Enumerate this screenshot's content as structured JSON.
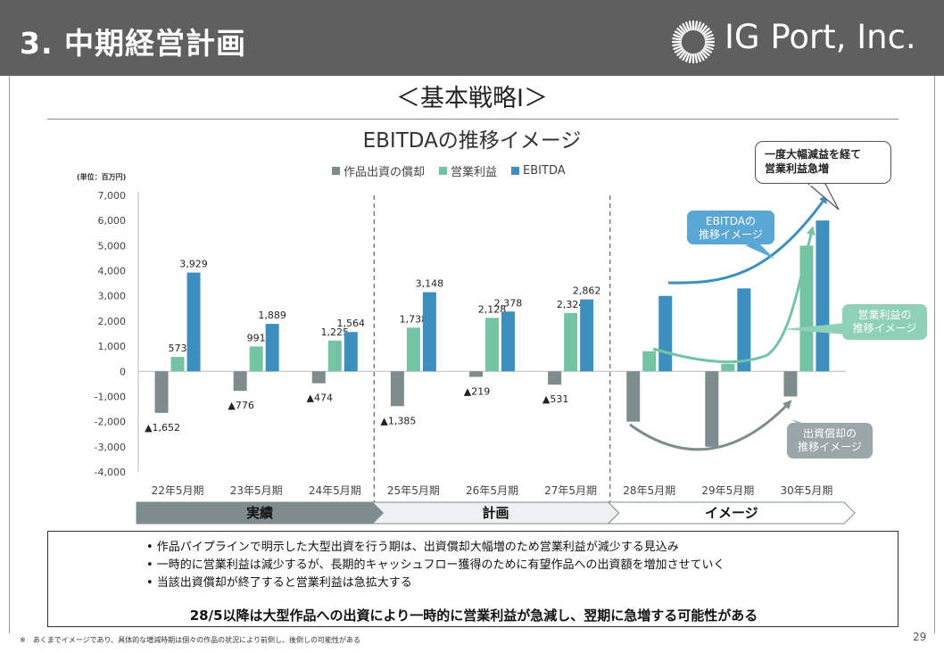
{
  "header": {
    "title": "3. 中期経営計画",
    "company": "IG Port, Inc."
  },
  "strategy_title": "＜基本戦略Ⅰ＞",
  "chart_title": "EBITDAの推移イメージ",
  "unit_label": "(単位：百万円)",
  "colors": {
    "amortization": "#7f8c8d",
    "operating_profit": "#74c3a4",
    "ebitda": "#3d8fc0",
    "header_bg": "#5f5f5f"
  },
  "chart_data": {
    "type": "bar",
    "title": "EBITDAの推移イメージ",
    "ylabel": "(単位：百万円)",
    "ylim": [
      -4000,
      7000
    ],
    "yticks": [
      "7,000",
      "6,000",
      "5,000",
      "4,000",
      "3,000",
      "2,000",
      "1,000",
      "0",
      "-1,000",
      "-2,000",
      "-3,000",
      "-4,000"
    ],
    "ytick_values": [
      7000,
      6000,
      5000,
      4000,
      3000,
      2000,
      1000,
      0,
      -1000,
      -2000,
      -3000,
      -4000
    ],
    "categories": [
      "22年5月期",
      "23年5月期",
      "24年5月期",
      "25年5月期",
      "26年5月期",
      "27年5月期",
      "28年5月期",
      "29年5月期",
      "30年5月期"
    ],
    "legend": [
      "作品出資の償却",
      "営業利益",
      "EBITDA"
    ],
    "series": [
      {
        "name": "作品出資の償却",
        "values": [
          -1652,
          -776,
          -474,
          -1385,
          -219,
          -531,
          -2000,
          -3000,
          -1000
        ],
        "labels": [
          "▲1,652",
          "▲776",
          "▲474",
          "▲1,385",
          "▲219",
          "▲531",
          null,
          null,
          null
        ]
      },
      {
        "name": "営業利益",
        "values": [
          573,
          991,
          1225,
          1738,
          2128,
          2324,
          800,
          300,
          5000
        ],
        "labels": [
          "573",
          "991",
          "1,225",
          "1,738",
          "2,128",
          "2,324",
          null,
          null,
          null
        ]
      },
      {
        "name": "EBITDA",
        "values": [
          3929,
          1889,
          1564,
          3148,
          2378,
          2862,
          3000,
          3300,
          6000
        ],
        "labels": [
          "3,929",
          "1,889",
          "1,564",
          "3,148",
          "2,378",
          "2,862",
          null,
          null,
          null
        ]
      }
    ],
    "phases": [
      {
        "label": "実績",
        "from": 0,
        "to": 2
      },
      {
        "label": "計画",
        "from": 3,
        "to": 5
      },
      {
        "label": "イメージ",
        "from": 6,
        "to": 8
      }
    ]
  },
  "callouts": {
    "top": [
      "一度大幅減益を経て",
      "営業利益急増"
    ],
    "ebitda": [
      "EBITDAの",
      "推移イメージ"
    ],
    "operating": [
      "営業利益の",
      "推移イメージ"
    ],
    "amortization": [
      "出資償却の",
      "推移イメージ"
    ]
  },
  "notes": {
    "bullets": [
      "• 作品パイプラインで明示した大型出資を行う期は、出資償却大幅増のため営業利益が減少する見込み",
      "• 一時的に営業利益は減少するが、長期的キャッシュフロー獲得のために有望作品への出資額を増加させていく",
      "• 当該出資償却が終了すると営業利益は急拡大する"
    ],
    "conclusion": "28/5以降は大型作品への出資により一時的に営業利益が急減し、翌期に急増する可能性がある"
  },
  "footnote": "※　あくまでイメージであり、具体的な増減時期は個々の作品の状況により前倒し、後倒しの可能性がある",
  "page_number": "29"
}
